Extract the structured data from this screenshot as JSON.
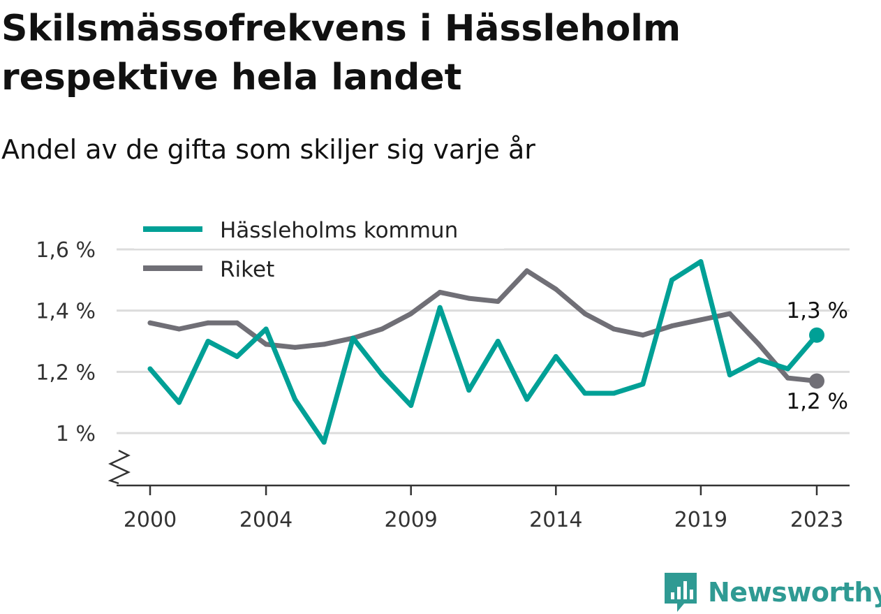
{
  "title": "Skilsmässofrekvens i Hässleholm respektive hela landet",
  "subtitle": "Andel av de gifta som skiljer sig varje år",
  "brand": {
    "name": "Newsworthy",
    "icon": "newsworthy-logo-icon",
    "color": "#2f9a93"
  },
  "chart_data": {
    "type": "line",
    "title": "Skilsmässofrekvens i Hässleholm respektive hela landet",
    "subtitle": "Andel av de gifta som skiljer sig varje år",
    "xlabel": "",
    "ylabel": "",
    "x": [
      2000,
      2001,
      2002,
      2003,
      2004,
      2005,
      2006,
      2007,
      2008,
      2009,
      2010,
      2011,
      2012,
      2013,
      2014,
      2015,
      2016,
      2017,
      2018,
      2019,
      2020,
      2021,
      2022,
      2023
    ],
    "x_ticks": [
      2000,
      2004,
      2009,
      2014,
      2019,
      2023
    ],
    "x_tick_labels": [
      "2000",
      "2004",
      "2009",
      "2014",
      "2019",
      "2023"
    ],
    "y_ticks": [
      1.0,
      1.2,
      1.4,
      1.6
    ],
    "y_tick_labels": [
      "1 %",
      "1,2 %",
      "1,4 %",
      "1,6 %"
    ],
    "ylim": [
      0.82,
      1.65
    ],
    "y_axis_break": true,
    "grid": true,
    "legend": "top-left",
    "series": [
      {
        "name": "Hässleholms kommun",
        "color": "#00a096",
        "values": [
          1.21,
          1.1,
          1.3,
          1.25,
          1.34,
          1.11,
          0.97,
          1.31,
          1.19,
          1.09,
          1.41,
          1.14,
          1.3,
          1.11,
          1.25,
          1.13,
          1.13,
          1.16,
          1.5,
          1.56,
          1.19,
          1.24,
          1.21,
          1.32
        ],
        "end_label": "1,3 %"
      },
      {
        "name": "Riket",
        "color": "#706f76",
        "values": [
          1.36,
          1.34,
          1.36,
          1.36,
          1.29,
          1.28,
          1.29,
          1.31,
          1.34,
          1.39,
          1.46,
          1.44,
          1.43,
          1.53,
          1.47,
          1.39,
          1.34,
          1.32,
          1.35,
          1.37,
          1.39,
          1.29,
          1.18,
          1.17
        ],
        "end_label": "1,2 %"
      }
    ]
  }
}
